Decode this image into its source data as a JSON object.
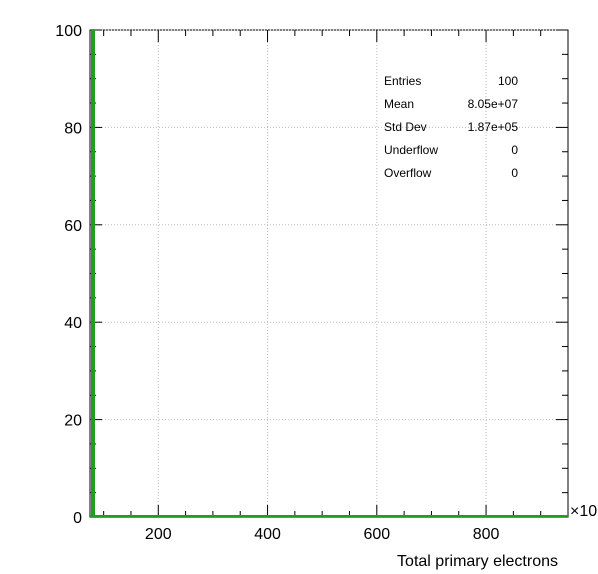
{
  "chart_data": {
    "type": "histogram",
    "xlabel": "Total primary electrons",
    "x_multiplier": "×10",
    "xlim": [
      75,
      950
    ],
    "ylim": [
      0,
      100
    ],
    "x_ticks": [
      200,
      400,
      600,
      800
    ],
    "y_ticks": [
      0,
      20,
      40,
      60,
      80,
      100
    ],
    "grid": true,
    "color": "#1f9e1f",
    "series": [
      {
        "x": 80.5,
        "y": 100
      }
    ],
    "stats": [
      {
        "label": "Entries",
        "value": "100"
      },
      {
        "label": "Mean",
        "value": "8.05e+07"
      },
      {
        "label": "Std Dev",
        "value": "1.87e+05"
      },
      {
        "label": "Underflow",
        "value": "0"
      },
      {
        "label": "Overflow",
        "value": "0"
      }
    ]
  }
}
